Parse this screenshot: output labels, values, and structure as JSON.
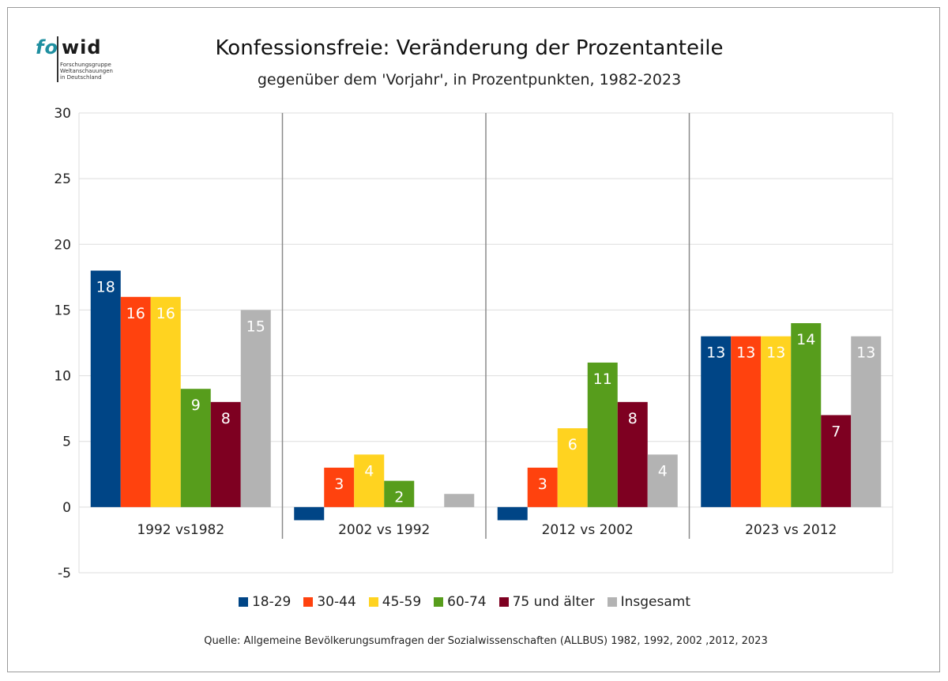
{
  "logo": {
    "text_fo": "fo",
    "text_wid": "wid",
    "subtitle": "Forschungsgruppe\nWeltanschauungen\nin Deutschland"
  },
  "chart_data": {
    "type": "bar",
    "title": "Konfessionsfreie: Veränderung der Prozentanteile",
    "subtitle": "gegenüber dem 'Vorjahr', in Prozentpunkten, 1982-2023",
    "categories": [
      "1992 vs1982",
      "2002 vs 1992",
      "2012 vs 2002",
      "2023 vs 2012"
    ],
    "series": [
      {
        "name": "18-29",
        "color": "#004586",
        "values": [
          18,
          -1,
          -1,
          13
        ],
        "labels": [
          "18",
          "",
          "",
          "13"
        ]
      },
      {
        "name": "30-44",
        "color": "#ff420e",
        "values": [
          16,
          3,
          3,
          13
        ],
        "labels": [
          "16",
          "3",
          "3",
          "13"
        ]
      },
      {
        "name": "45-59",
        "color": "#ffd320",
        "values": [
          16,
          4,
          6,
          13
        ],
        "labels": [
          "16",
          "4",
          "6",
          "13"
        ]
      },
      {
        "name": "60-74",
        "color": "#579d1c",
        "values": [
          9,
          2,
          11,
          14
        ],
        "labels": [
          "9",
          "2",
          "11",
          "14"
        ]
      },
      {
        "name": "75 und älter",
        "color": "#7e0021",
        "values": [
          8,
          0,
          8,
          7
        ],
        "labels": [
          "8",
          "",
          "8",
          "7"
        ]
      },
      {
        "name": "Insgesamt",
        "color": "#b3b3b3",
        "values": [
          15,
          1,
          4,
          13
        ],
        "labels": [
          "15",
          "",
          "4",
          "13"
        ]
      }
    ],
    "ylim": [
      -5,
      30
    ],
    "yticks": [
      -5,
      0,
      5,
      10,
      15,
      20,
      25,
      30
    ],
    "grid": true,
    "legend_position": "bottom",
    "source": "Quelle: Allgemeine Bevölkerungsumfragen der Sozialwissenschaften (ALLBUS) 1982, 1992, 2002 ,2012, 2023"
  }
}
